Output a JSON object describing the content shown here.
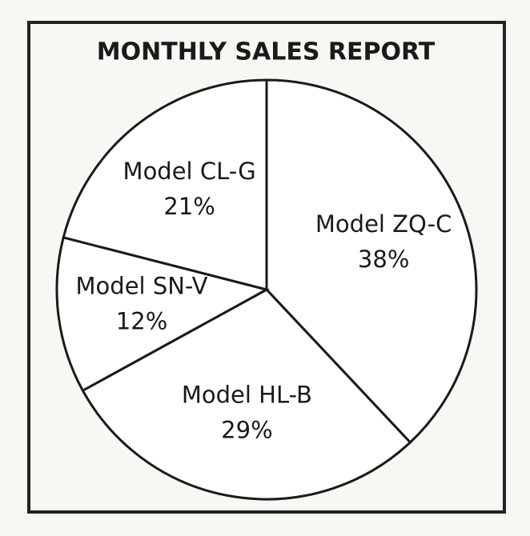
{
  "chart_data": {
    "type": "pie",
    "title": "MONTHLY SALES REPORT",
    "categories": [
      "Model ZQ-C",
      "Model HL-B",
      "Model SN-V",
      "Model CL-G"
    ],
    "values": [
      38,
      29,
      12,
      21
    ],
    "value_labels": [
      "38%",
      "29%",
      "12%",
      "21%"
    ],
    "color": "#ffffff"
  }
}
